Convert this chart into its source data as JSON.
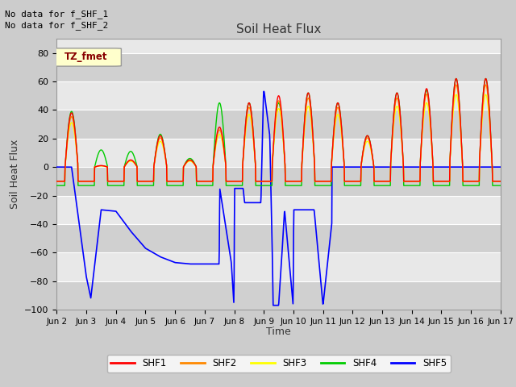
{
  "title": "Soil Heat Flux",
  "ylabel": "Soil Heat Flux",
  "xlabel": "Time",
  "ylim": [
    -100,
    90
  ],
  "yticks": [
    -100,
    -80,
    -60,
    -40,
    -20,
    0,
    20,
    40,
    60,
    80
  ],
  "no_data_text": [
    "No data for f_SHF_1",
    "No data for f_SHF_2"
  ],
  "legend_box_text": "TZ_fmet",
  "legend_box_color": "#ffffcc",
  "legend_box_border": "#aaaaaa",
  "series_colors": {
    "SHF1": "#ff0000",
    "SHF2": "#ff8800",
    "SHF3": "#ffff00",
    "SHF4": "#00cc00",
    "SHF5": "#0000ff"
  },
  "tick_positions": [
    2,
    3,
    4,
    5,
    6,
    7,
    8,
    9,
    10,
    11,
    12,
    13,
    14,
    15,
    16,
    17
  ],
  "tick_labels": [
    "Jun 2",
    "Jun 3",
    "Jun 4",
    "Jun 5",
    "Jun 6",
    "Jun 7",
    "Jun 8",
    "Jun 9",
    "Jun 10",
    "Jun 11",
    "Jun 12",
    "Jun 13",
    "Jun 14",
    "Jun 15",
    "Jun 16",
    "Jun 17"
  ],
  "fig_bg": "#cccccc",
  "ax_bg": "#e0e0e0",
  "shf5_x": [
    2.0,
    2.5,
    3.0,
    3.15,
    3.5,
    4.0,
    4.5,
    5.0,
    5.5,
    6.0,
    6.5,
    7.0,
    7.49,
    7.51,
    7.9,
    7.99,
    8.01,
    8.3,
    8.35,
    8.9,
    8.99,
    9.01,
    9.2,
    9.29,
    9.31,
    9.5,
    9.6,
    9.7,
    9.99,
    10.01,
    10.5,
    10.7,
    11.0,
    11.5,
    12.0,
    13.0,
    14.0,
    15.0,
    16.0,
    17.0
  ],
  "shf5_y": [
    0.0,
    0.0,
    -77.0,
    -92.0,
    -30.0,
    -31.0,
    -45.0,
    -57.0,
    -63.0,
    -67.0,
    -68.0,
    -68.0,
    -68.0,
    -15.0,
    -67.0,
    -97.0,
    -15.0,
    -15.0,
    -25.0,
    -25.0,
    53.0,
    53.0,
    22.0,
    -65.0,
    -97.0,
    -97.0,
    -65.0,
    -30.0,
    -97.0,
    -30.0,
    -30.0,
    -30.0,
    -97.0,
    0.0,
    0.0,
    0.0,
    0.0,
    0.0,
    0.0,
    0.0
  ],
  "day_peaks_shf1": {
    "2": 38,
    "3": 1,
    "4": 5,
    "5": 22,
    "6": 5,
    "7": 28,
    "8": 45,
    "9": 50,
    "10": 52,
    "11": 45,
    "12": 22,
    "13": 52,
    "14": 55,
    "15": 62,
    "16": 62
  },
  "day_peaks_shf4": {
    "2": 39,
    "3": 12,
    "4": 11,
    "5": 23,
    "6": 6,
    "7": 45,
    "8": 45,
    "9": 45,
    "10": 52,
    "11": 45,
    "12": 22,
    "13": 52,
    "14": 54,
    "15": 62,
    "16": 62
  },
  "nighttime_shf1": -10,
  "nighttime_shf4": -13
}
